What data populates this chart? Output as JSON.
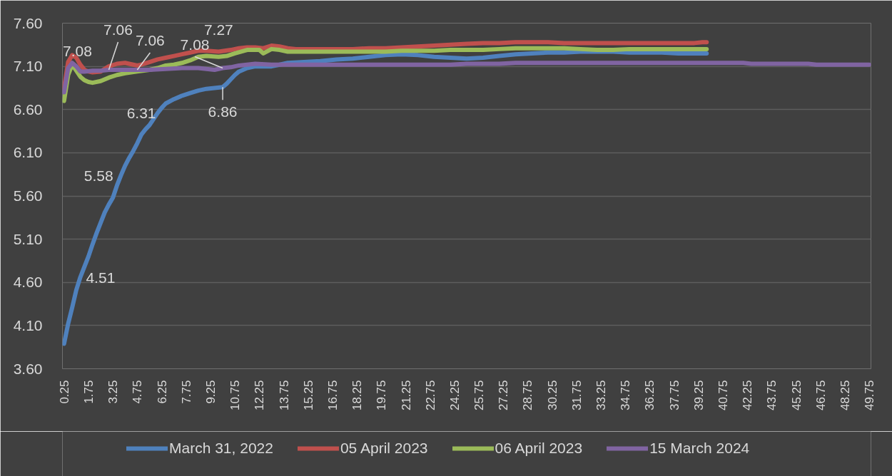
{
  "chart_data": {
    "type": "line",
    "xlim": [
      0.15,
      49.85
    ],
    "xticks": [
      0.25,
      1.75,
      3.25,
      4.75,
      6.25,
      7.75,
      9.25,
      10.75,
      12.25,
      13.75,
      15.25,
      16.75,
      18.25,
      19.75,
      21.25,
      22.75,
      24.25,
      25.75,
      27.25,
      28.75,
      30.25,
      31.75,
      33.25,
      34.75,
      36.25,
      37.75,
      39.25,
      40.75,
      42.25,
      43.75,
      45.25,
      46.75,
      48.25,
      49.75
    ],
    "ylim": [
      3.6,
      7.6
    ],
    "yticks": [
      {
        "value": 3.6,
        "label": "3.60"
      },
      {
        "value": 4.1,
        "label": "4.10"
      },
      {
        "value": 4.6,
        "label": "4.60"
      },
      {
        "value": 5.1,
        "label": "5.10"
      },
      {
        "value": 5.6,
        "label": "5.60"
      },
      {
        "value": 6.1,
        "label": "6.10"
      },
      {
        "value": 6.6,
        "label": "6.60"
      },
      {
        "value": 7.1,
        "label": "7.10"
      },
      {
        "value": 7.6,
        "label": "7.60"
      }
    ],
    "grid": "y",
    "legend": "bottom",
    "annotations": [
      {
        "text": "7.08",
        "x": 0.5,
        "y": 7.08
      },
      {
        "text": "7.06",
        "x": 3.0,
        "y": 7.06
      },
      {
        "text": "7.06",
        "x": 4.75,
        "y": 7.06
      },
      {
        "text": "7.08",
        "x": 10.0,
        "y": 7.08
      },
      {
        "text": "7.27",
        "x": 9.75,
        "y": 7.27
      },
      {
        "text": "6.31",
        "x": 5.0,
        "y": 6.31
      },
      {
        "text": "6.86",
        "x": 10.0,
        "y": 6.86
      },
      {
        "text": "5.58",
        "x": 3.25,
        "y": 5.58
      },
      {
        "text": "4.51",
        "x": 1.0,
        "y": 4.51
      }
    ],
    "series": [
      {
        "name": "March 31, 2022",
        "color": "#4f81bd",
        "x": [
          0.25,
          0.5,
          0.75,
          1.0,
          1.25,
          1.5,
          1.75,
          2.0,
          2.25,
          2.5,
          2.75,
          3.0,
          3.25,
          3.5,
          3.75,
          4.0,
          4.25,
          4.5,
          4.75,
          5.0,
          5.25,
          5.5,
          5.75,
          6.0,
          6.25,
          6.5,
          7.0,
          7.5,
          8.0,
          8.5,
          9.0,
          9.5,
          10.0,
          10.25,
          10.5,
          10.75,
          11.0,
          11.5,
          12.0,
          12.5,
          13.0,
          13.5,
          14.0,
          15.0,
          16.0,
          17.0,
          18.0,
          19.0,
          20.0,
          21.0,
          22.0,
          23.0,
          24.0,
          25.0,
          26.0,
          27.0,
          28.0,
          29.0,
          30.0,
          31.0,
          32.0,
          33.0,
          34.0,
          35.0,
          36.0,
          37.0,
          38.0,
          39.0,
          39.75
        ],
        "values": [
          3.89,
          4.12,
          4.31,
          4.51,
          4.66,
          4.78,
          4.9,
          5.04,
          5.17,
          5.29,
          5.41,
          5.5,
          5.58,
          5.72,
          5.84,
          5.95,
          6.04,
          6.12,
          6.21,
          6.31,
          6.37,
          6.42,
          6.49,
          6.56,
          6.62,
          6.67,
          6.72,
          6.76,
          6.79,
          6.82,
          6.84,
          6.85,
          6.86,
          6.9,
          6.95,
          7.0,
          7.04,
          7.08,
          7.1,
          7.1,
          7.1,
          7.12,
          7.14,
          7.15,
          7.16,
          7.18,
          7.19,
          7.21,
          7.23,
          7.24,
          7.23,
          7.21,
          7.2,
          7.19,
          7.2,
          7.22,
          7.24,
          7.25,
          7.26,
          7.26,
          7.27,
          7.27,
          7.27,
          7.26,
          7.26,
          7.26,
          7.25,
          7.25,
          7.25
        ]
      },
      {
        "name": "05 April 2023",
        "color": "#c0504d",
        "x": [
          0.25,
          0.5,
          0.75,
          1.0,
          1.25,
          1.5,
          1.75,
          2.0,
          2.5,
          3.0,
          3.5,
          4.0,
          4.5,
          4.75,
          5.0,
          5.5,
          6.0,
          6.5,
          7.0,
          7.5,
          8.0,
          8.5,
          9.0,
          9.75,
          10.5,
          11.0,
          11.5,
          12.0,
          12.5,
          13.0,
          13.5,
          14.0,
          14.5,
          15.0,
          16.0,
          17.0,
          18.0,
          19.0,
          20.0,
          21.0,
          22.0,
          23.0,
          24.0,
          25.0,
          26.0,
          27.0,
          28.0,
          29.0,
          30.0,
          31.0,
          32.0,
          33.0,
          34.0,
          35.0,
          36.0,
          37.0,
          38.0,
          39.0,
          39.5,
          39.75
        ],
        "values": [
          6.85,
          7.15,
          7.23,
          7.2,
          7.12,
          7.06,
          7.04,
          7.03,
          7.04,
          7.1,
          7.13,
          7.14,
          7.12,
          7.11,
          7.12,
          7.15,
          7.18,
          7.2,
          7.22,
          7.24,
          7.26,
          7.28,
          7.28,
          7.27,
          7.29,
          7.31,
          7.32,
          7.32,
          7.31,
          7.34,
          7.33,
          7.31,
          7.3,
          7.3,
          7.3,
          7.3,
          7.3,
          7.31,
          7.31,
          7.32,
          7.33,
          7.34,
          7.35,
          7.36,
          7.37,
          7.37,
          7.38,
          7.38,
          7.38,
          7.37,
          7.37,
          7.37,
          7.37,
          7.37,
          7.37,
          7.37,
          7.37,
          7.37,
          7.38,
          7.38
        ]
      },
      {
        "name": "06 April 2023",
        "color": "#9bbb59",
        "x": [
          0.25,
          0.5,
          0.75,
          1.0,
          1.25,
          1.5,
          1.75,
          2.0,
          2.5,
          3.0,
          3.5,
          4.0,
          4.75,
          5.5,
          6.0,
          6.5,
          7.0,
          7.5,
          8.0,
          8.5,
          9.0,
          9.75,
          10.25,
          10.75,
          11.5,
          12.25,
          12.5,
          13.0,
          13.5,
          14.0,
          15.0,
          16.0,
          17.0,
          18.0,
          19.0,
          20.0,
          21.0,
          22.0,
          23.0,
          24.0,
          25.0,
          26.0,
          27.0,
          28.0,
          29.0,
          30.0,
          31.0,
          32.0,
          33.0,
          34.0,
          35.0,
          36.0,
          37.0,
          38.0,
          39.0,
          39.75
        ],
        "values": [
          6.7,
          7.0,
          7.12,
          7.05,
          6.98,
          6.94,
          6.92,
          6.91,
          6.93,
          6.97,
          7.0,
          7.02,
          7.04,
          7.06,
          7.08,
          7.11,
          7.12,
          7.14,
          7.17,
          7.21,
          7.22,
          7.21,
          7.22,
          7.25,
          7.29,
          7.29,
          7.25,
          7.3,
          7.29,
          7.27,
          7.27,
          7.27,
          7.27,
          7.27,
          7.27,
          7.27,
          7.28,
          7.28,
          7.28,
          7.29,
          7.29,
          7.29,
          7.3,
          7.31,
          7.31,
          7.31,
          7.31,
          7.3,
          7.29,
          7.29,
          7.3,
          7.3,
          7.3,
          7.3,
          7.3,
          7.3
        ]
      },
      {
        "name": "15 March 2024",
        "color": "#8064a2",
        "x": [
          0.25,
          0.5,
          0.75,
          1.0,
          1.25,
          1.5,
          2.0,
          2.5,
          3.0,
          4.0,
          4.75,
          5.5,
          6.5,
          7.5,
          8.5,
          9.0,
          9.5,
          10.0,
          10.5,
          11.0,
          12.0,
          13.0,
          14.0,
          16.0,
          18.0,
          20.0,
          22.0,
          24.0,
          25.0,
          27.0,
          28.0,
          30.0,
          32.0,
          34.0,
          36.0,
          38.0,
          40.0,
          42.0,
          42.5,
          44.0,
          46.0,
          46.5,
          48.0,
          49.75
        ],
        "values": [
          6.8,
          7.08,
          7.14,
          7.1,
          7.04,
          7.04,
          7.05,
          7.05,
          7.06,
          7.06,
          7.06,
          7.06,
          7.07,
          7.08,
          7.08,
          7.07,
          7.06,
          7.08,
          7.09,
          7.11,
          7.13,
          7.12,
          7.12,
          7.12,
          7.12,
          7.12,
          7.12,
          7.12,
          7.13,
          7.13,
          7.14,
          7.14,
          7.14,
          7.14,
          7.14,
          7.14,
          7.14,
          7.14,
          7.13,
          7.13,
          7.13,
          7.12,
          7.12,
          7.12
        ]
      }
    ]
  }
}
